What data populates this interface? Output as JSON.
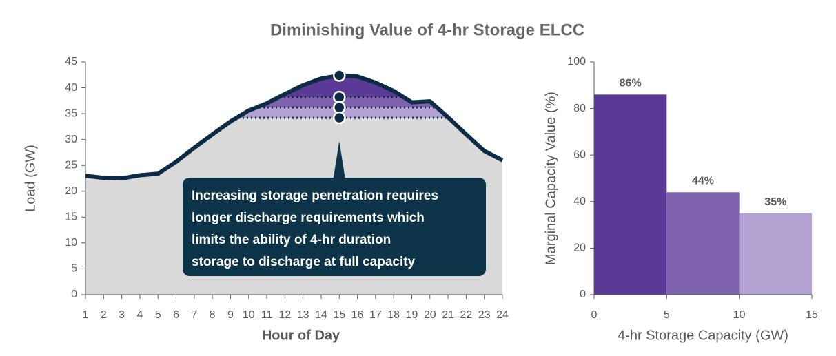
{
  "title": "Diminishing Value of 4-hr Storage ELCC",
  "chart_data": [
    {
      "type": "area",
      "x": [
        1,
        2,
        3,
        4,
        5,
        6,
        7,
        8,
        9,
        10,
        11,
        12,
        13,
        14,
        15,
        16,
        17,
        18,
        19,
        20,
        21,
        22,
        23,
        24
      ],
      "values": [
        23.0,
        22.6,
        22.5,
        23.1,
        23.4,
        25.7,
        28.4,
        31.0,
        33.5,
        35.6,
        37.0,
        38.8,
        40.5,
        41.8,
        42.4,
        42.2,
        41.0,
        39.4,
        37.2,
        37.4,
        34.3,
        31.0,
        27.8,
        26.0
      ],
      "color": "#0d2b45",
      "fill": "#d9d9d9",
      "levels": [
        38.2,
        36.2,
        34.2
      ],
      "level_colors": [
        "#5b3a96",
        "#7e62ad",
        "#b3a2d2"
      ],
      "marker_x": 15,
      "annotation": [
        "Increasing storage penetration requires",
        "longer discharge requirements which",
        "limits the ability of 4-hr duration",
        "storage to discharge at full capacity"
      ],
      "xlabel": "Hour of Day",
      "ylabel": "Load (GW)",
      "xlim": [
        1,
        24
      ],
      "xticks": [
        1,
        2,
        3,
        4,
        5,
        6,
        7,
        8,
        9,
        10,
        11,
        12,
        13,
        14,
        15,
        16,
        17,
        18,
        19,
        20,
        21,
        22,
        23,
        24
      ],
      "ylim": [
        0,
        45
      ],
      "yticks": [
        0,
        5,
        10,
        15,
        20,
        25,
        30,
        35,
        40,
        45
      ]
    },
    {
      "type": "histogram",
      "bins": [
        0,
        5,
        10,
        15
      ],
      "values": [
        86,
        44,
        35
      ],
      "value_labels": [
        "86%",
        "44%",
        "35%"
      ],
      "colors": [
        "#5b3a96",
        "#7e62ad",
        "#b3a2d2"
      ],
      "xlabel": "4-hr Storage Capacity (GW)",
      "ylabel": "Marginal Capacity Value (%)",
      "xlim": [
        0,
        15
      ],
      "xticks": [
        0,
        5,
        10,
        15
      ],
      "ylim": [
        0,
        100
      ],
      "yticks": [
        0,
        20,
        40,
        60,
        80,
        100
      ]
    }
  ]
}
